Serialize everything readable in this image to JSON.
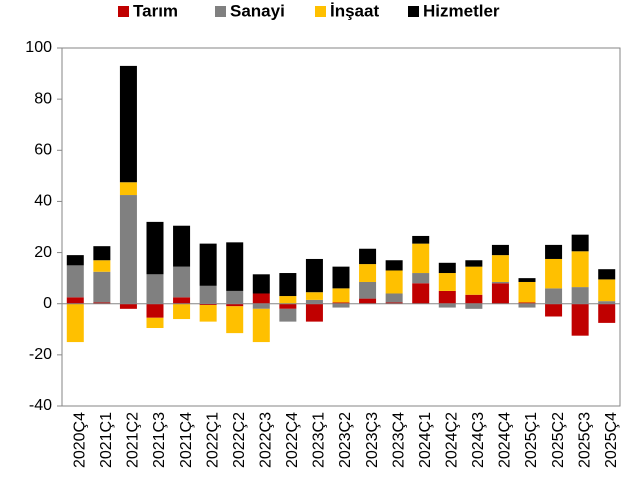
{
  "chart_data": {
    "type": "bar",
    "stacked": true,
    "categories": [
      "2020Ç4",
      "2021Ç1",
      "2021Ç2",
      "2021Ç3",
      "2021Ç4",
      "2022Ç1",
      "2022Ç2",
      "2022Ç3",
      "2022Ç4",
      "2023Ç1",
      "2023Ç2",
      "2023Ç3",
      "2023Ç4",
      "2024Ç1",
      "2024Ç2",
      "2024Ç3",
      "2024Ç4",
      "2025Ç1",
      "2025Ç2",
      "2025Ç3",
      "2025Ç4"
    ],
    "series": [
      {
        "name": "Tarım",
        "color": "#c00000",
        "values": [
          2.5,
          0.5,
          -2,
          -5.5,
          2.5,
          -0.5,
          -1,
          4,
          -2,
          -7,
          0.5,
          2,
          0.5,
          8,
          5,
          3.5,
          8,
          0.5,
          -5,
          -12.5,
          -7.5
        ]
      },
      {
        "name": "Sanayi",
        "color": "#808080",
        "values": [
          12.5,
          12,
          42.5,
          11.5,
          12,
          7,
          5,
          -2,
          -5,
          1.5,
          -1.5,
          6.5,
          3.5,
          4,
          -1.5,
          -2,
          0.5,
          -1.5,
          6,
          6.5,
          1
        ]
      },
      {
        "name": "İnşaat",
        "color": "#ffc000",
        "values": [
          -15,
          4.5,
          5,
          -4,
          -6,
          -6.5,
          -10.5,
          -13,
          3,
          3,
          5.5,
          7,
          9,
          11.5,
          7,
          11,
          10.5,
          8,
          11.5,
          14,
          8.5
        ]
      },
      {
        "name": "Hizmetler",
        "color": "#000000",
        "values": [
          4,
          5.5,
          45.5,
          20.5,
          16,
          16.5,
          19,
          7.5,
          9,
          13,
          8.5,
          6,
          4,
          3,
          4,
          2.5,
          4,
          1.5,
          5.5,
          6.5,
          4
        ]
      }
    ],
    "ylim": [
      -40,
      100
    ],
    "yticks": [
      -40,
      -20,
      0,
      20,
      40,
      60,
      80,
      100
    ],
    "legend": "top"
  }
}
